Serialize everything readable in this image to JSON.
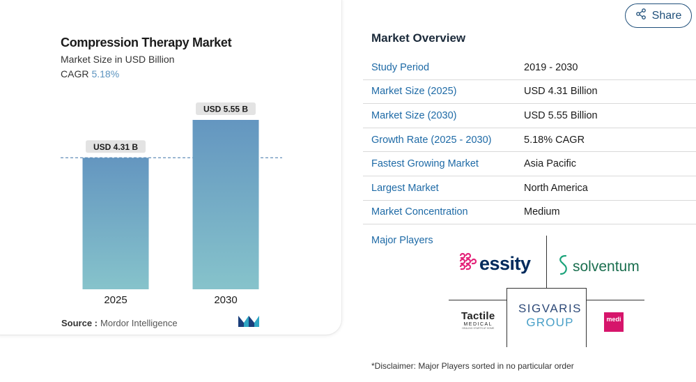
{
  "chart_card": {
    "title": "Compression Therapy Market",
    "subtitle": "Market Size in USD Billion",
    "cagr_label": "CAGR",
    "cagr_value": "5.18%",
    "source_label": "Source :",
    "source_value": "Mordor Intelligence"
  },
  "chart_data": {
    "type": "bar",
    "categories": [
      "2025",
      "2030"
    ],
    "values": [
      4.31,
      5.55
    ],
    "data_labels": [
      "USD 4.31 B",
      "USD 5.55 B"
    ],
    "title": "Compression Therapy Market",
    "ylabel": "Market Size in USD Billion",
    "ylim": [
      0,
      5.55
    ],
    "colors": {
      "bar_top": "#6496c0",
      "bar_bottom": "#86c3cb",
      "reference_line": "#3f74a8"
    }
  },
  "share": {
    "label": "Share"
  },
  "overview": {
    "title": "Market Overview",
    "rows": [
      {
        "key": "Study Period",
        "value": "2019 - 2030"
      },
      {
        "key": "Market Size (2025)",
        "value": "USD 4.31 Billion"
      },
      {
        "key": "Market Size (2030)",
        "value": "USD 5.55 Billion"
      },
      {
        "key": "Growth Rate (2025 - 2030)",
        "value": "5.18% CAGR"
      },
      {
        "key": "Fastest Growing Market",
        "value": "Asia Pacific"
      },
      {
        "key": "Largest Market",
        "value": "North America"
      },
      {
        "key": "Market Concentration",
        "value": "Medium"
      }
    ],
    "players_label": "Major Players",
    "players": {
      "essity": "essity",
      "solventum": "solventum",
      "tactile_1": "Tactile",
      "tactile_2": "MEDICAL",
      "tactile_3": "HEALING STARTS AT HOME",
      "sigvaris_1": "SIGVARIS",
      "sigvaris_2": "GROUP",
      "medi": "medi"
    },
    "disclaimer": "*Disclaimer: Major Players sorted in no particular order"
  }
}
